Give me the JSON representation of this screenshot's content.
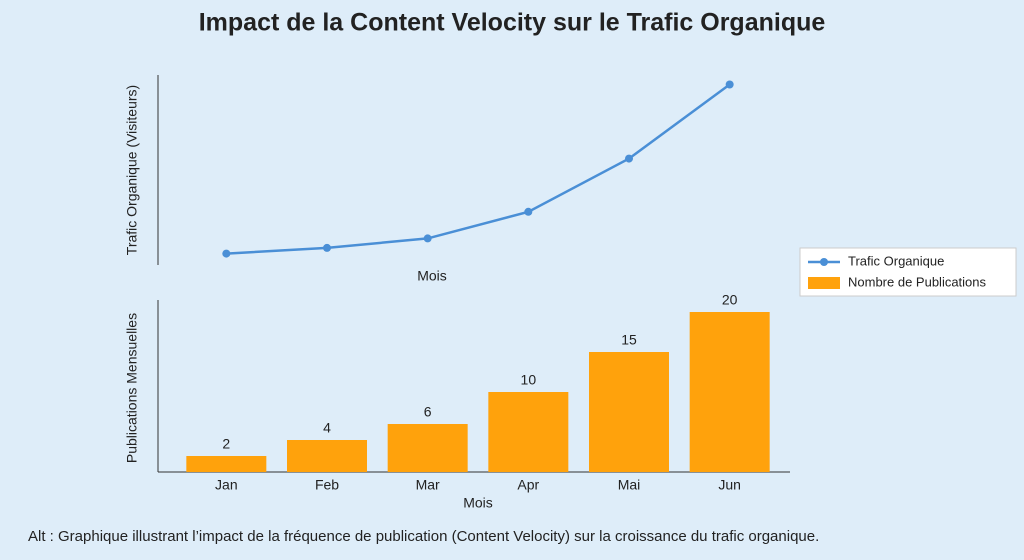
{
  "title": "Impact de la Content Velocity sur le Trafic Organique",
  "caption": "Alt : Graphique illustrant l’impact de la fréquence de publication (Content Velocity) sur la croissance du trafic organique.",
  "chart_data": [
    {
      "type": "line",
      "x_label": "Mois",
      "y_label": "Trafic Organique (Visiteurs)",
      "series": [
        {
          "name": "Trafic Organique",
          "color": "#4a8fd6",
          "values": [
            6,
            9,
            14,
            28,
            56,
            95
          ]
        }
      ],
      "ylim": [
        0,
        100
      ]
    },
    {
      "type": "bar",
      "x_label": "Mois",
      "y_label": "Publications Mensuelles",
      "categories": [
        "Jan",
        "Feb",
        "Mar",
        "Apr",
        "Mai",
        "Jun"
      ],
      "series": [
        {
          "name": "Nombre de Publications",
          "color": "#ffa20c",
          "values": [
            2,
            4,
            6,
            10,
            15,
            20
          ]
        }
      ],
      "ylim": [
        0,
        21
      ]
    }
  ]
}
